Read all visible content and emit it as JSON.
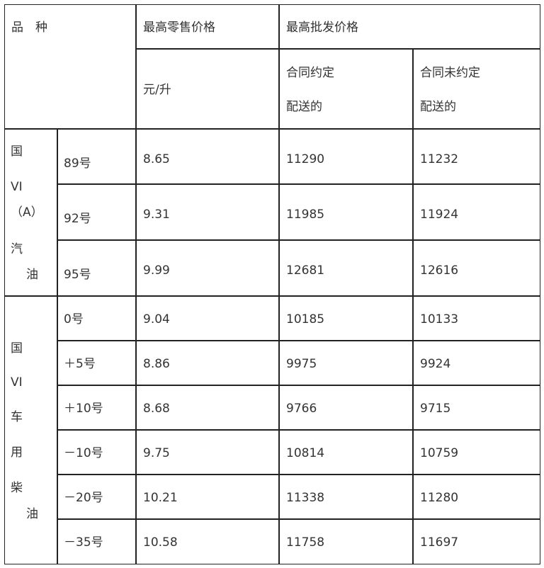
{
  "header": {
    "variety": "品　种",
    "retail_max": "最高零售价格",
    "wholesale_max": "最高批发价格",
    "retail_unit": "元/升",
    "contract_line1": "合同约定",
    "contract_line2": "配送的",
    "no_contract_line1": "合同未约定",
    "no_contract_line2": "配送的"
  },
  "gasoline": {
    "label_chars": [
      "国",
      "VI",
      "（A）",
      "汽",
      "油"
    ],
    "rows": [
      {
        "grade": "89号",
        "retail": "8.65",
        "contract": "11290",
        "no_contract": "11232"
      },
      {
        "grade": "92号",
        "retail": "9.31",
        "contract": "11985",
        "no_contract": "11924"
      },
      {
        "grade": "95号",
        "retail": "9.99",
        "contract": "12681",
        "no_contract": "12616"
      }
    ]
  },
  "diesel": {
    "label_chars": [
      "国",
      "VI",
      "车",
      "用",
      "柴",
      "油"
    ],
    "rows": [
      {
        "grade": "0号",
        "retail": "9.04",
        "contract": "10185",
        "no_contract": "10133"
      },
      {
        "grade": "＋5号",
        "retail": "8.86",
        "contract": "9975",
        "no_contract": "9924"
      },
      {
        "grade": "＋10号",
        "retail": "8.68",
        "contract": "9766",
        "no_contract": "9715"
      },
      {
        "grade": "－10号",
        "retail": "9.75",
        "contract": "10814",
        "no_contract": "10759"
      },
      {
        "grade": "－20号",
        "retail": "10.21",
        "contract": "11338",
        "no_contract": "11280"
      },
      {
        "grade": "－35号",
        "retail": "10.58",
        "contract": "11758",
        "no_contract": "11697"
      }
    ]
  }
}
